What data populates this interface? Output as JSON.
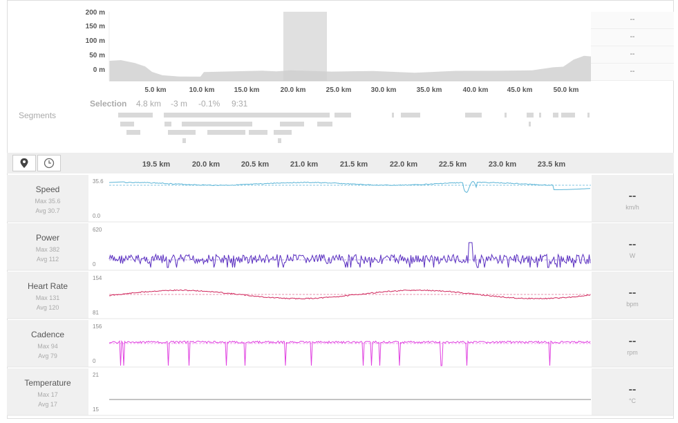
{
  "elevation": {
    "y_ticks": [
      "200 m",
      "150 m",
      "100 m",
      "50 m",
      "0 m"
    ],
    "x_ticks": [
      "5.0 km",
      "10.0 km",
      "15.0 km",
      "20.0 km",
      "25.0 km",
      "30.0 km",
      "35.0 km",
      "40.0 km",
      "45.0 km",
      "50.0 km"
    ],
    "side_values": [
      "--",
      "--",
      "--",
      "--"
    ]
  },
  "selection": {
    "label": "Selection",
    "distance": "4.8 km",
    "elevation": "-3 m",
    "grade": "-0.1%",
    "time": "9:31"
  },
  "segments": {
    "title": "Segments"
  },
  "toolbar": {
    "map_icon": "map-pin-icon",
    "time_icon": "clock-icon"
  },
  "zoom_ticks": [
    "19.5 km",
    "20.0 km",
    "20.5 km",
    "21.0 km",
    "21.5 km",
    "22.0 km",
    "22.5 km",
    "23.0 km",
    "23.5 km"
  ],
  "rows": [
    {
      "name": "Speed",
      "max": "Max 35.6",
      "avg": "Avg 30.7",
      "top": "35.6",
      "bottom": "0.0",
      "value": "--",
      "unit": "km/h",
      "color": "#5ab4d6"
    },
    {
      "name": "Power",
      "max": "Max 382",
      "avg": "Avg 112",
      "top": "620",
      "bottom": "0",
      "value": "--",
      "unit": "W",
      "color": "#5a2fc0"
    },
    {
      "name": "Heart Rate",
      "max": "Max 131",
      "avg": "Avg 120",
      "top": "154",
      "bottom": "81",
      "value": "--",
      "unit": "bpm",
      "color": "#d0245a"
    },
    {
      "name": "Cadence",
      "max": "Max 94",
      "avg": "Avg 79",
      "top": "156",
      "bottom": "0",
      "value": "--",
      "unit": "rpm",
      "color": "#e040e0"
    },
    {
      "name": "Temperature",
      "max": "Max 17",
      "avg": "Avg 17",
      "top": "21",
      "bottom": "15",
      "value": "--",
      "unit": "°C",
      "color": "#888888"
    }
  ]
}
